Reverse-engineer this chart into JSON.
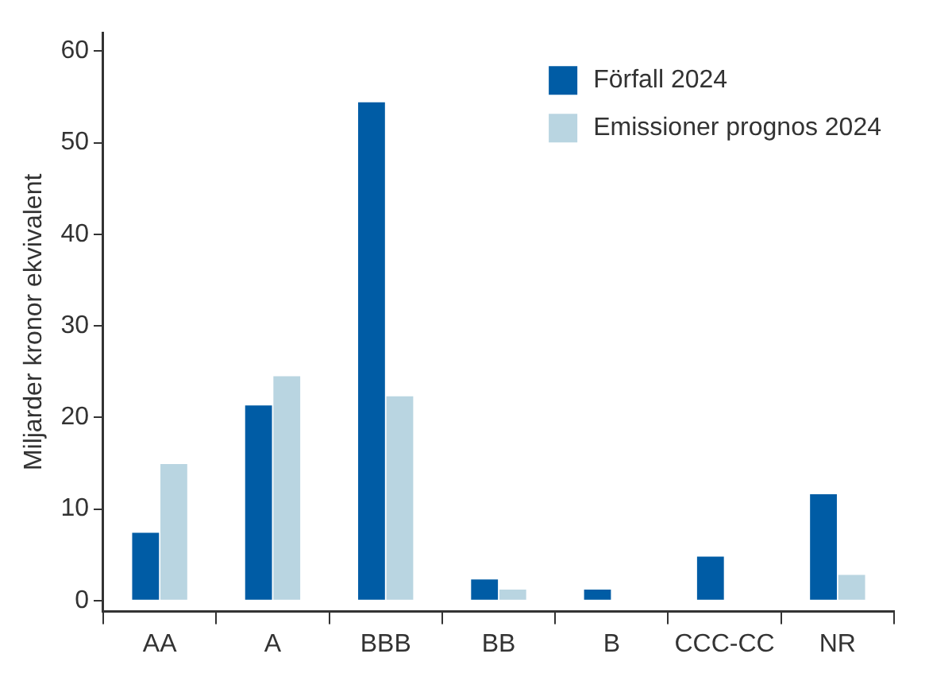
{
  "chart_data": {
    "type": "bar",
    "ylabel": "Miljarder kronor ekvivalent",
    "categories": [
      "AA",
      "A",
      "BBB",
      "BB",
      "B",
      "CCC-CC",
      "NR"
    ],
    "series": [
      {
        "name": "Förfall 2024",
        "color": "#005ca5",
        "values": [
          7.4,
          21.3,
          54.4,
          2.3,
          1.2,
          4.8,
          11.6
        ]
      },
      {
        "name": "Emissioner prognos 2024",
        "color": "#b9d5e1",
        "values": [
          14.9,
          24.5,
          22.3,
          1.2,
          null,
          null,
          2.8
        ]
      }
    ],
    "ylim": [
      -1.2,
      62
    ],
    "yticks": [
      0,
      10,
      20,
      30,
      40,
      50,
      60
    ],
    "grid": false,
    "legend": "top right"
  }
}
